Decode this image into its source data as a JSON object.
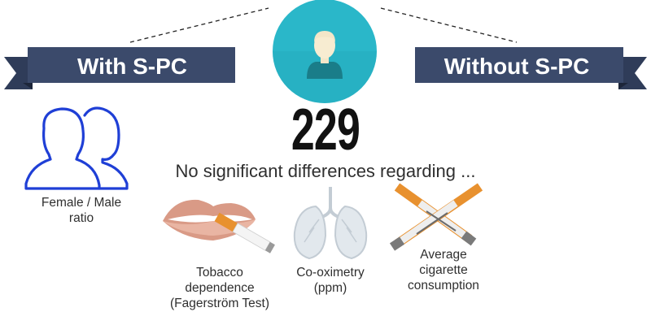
{
  "left_group": {
    "label": "With S-PC"
  },
  "right_group": {
    "label": "Without S-PC"
  },
  "total": "229",
  "subtitle": "No significant differences regarding ...",
  "items": {
    "ratio": {
      "line1": "Female / Male",
      "line2": "ratio"
    },
    "dependence": {
      "line1": "Tobacco",
      "line2": "dependence",
      "line3": "(Fagerström Test)"
    },
    "cooximetry": {
      "line1": "Co-oximetry",
      "line2": "(ppm)"
    },
    "consumption": {
      "line1": "Average",
      "line2": "cigarette",
      "line3": "consumption"
    }
  },
  "colors": {
    "ribbon": "#3b4a6b",
    "ribbon_dark": "#2a3652",
    "circle": "#2ab7c9",
    "people_outline": "#1f3fd6",
    "cigarette_orange": "#e8912f",
    "lips": "#d99a86",
    "lungs": "#dfe5ea"
  },
  "icons": [
    "person-icon",
    "two-people-icon",
    "lips-cigarette-icon",
    "lungs-icon",
    "crossed-cigarettes-icon"
  ]
}
